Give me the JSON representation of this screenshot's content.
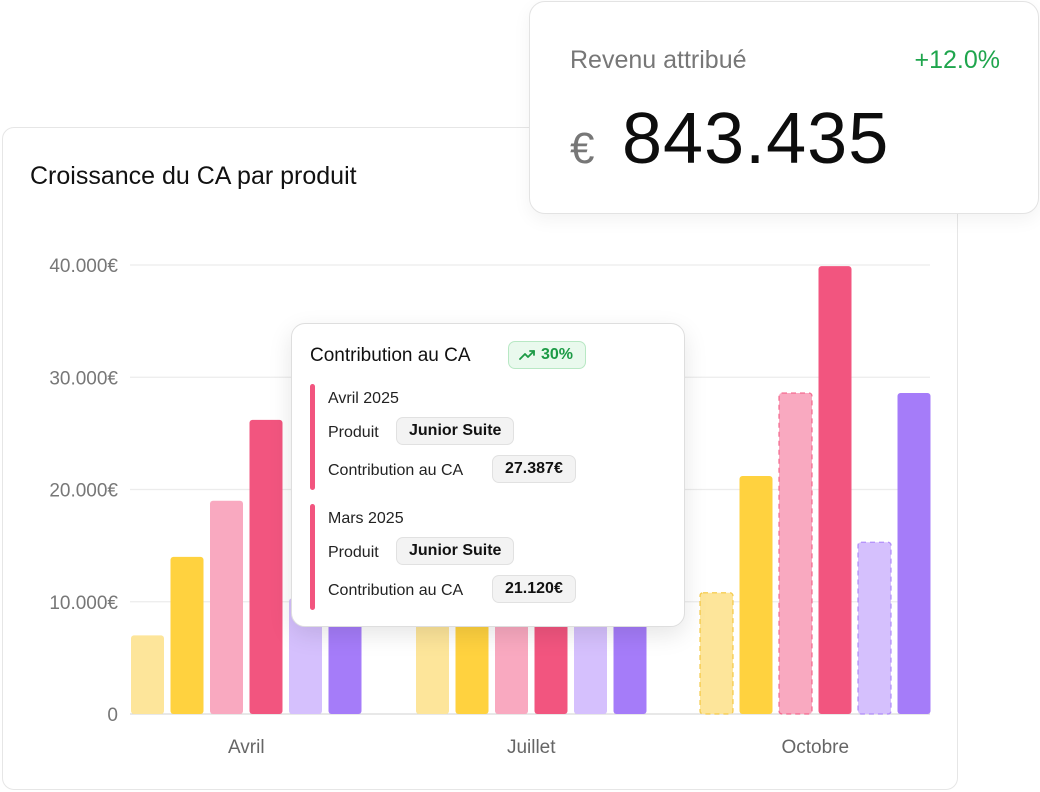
{
  "revenue": {
    "label": "Revenu attribué",
    "delta": "+12.0%",
    "currency": "€",
    "value": "843.435"
  },
  "chart_data": {
    "type": "bar",
    "title": "Croissance du CA par produit",
    "categories": [
      "Avril",
      "Juillet",
      "Octobre"
    ],
    "ylim": [
      0,
      40000
    ],
    "y_ticks": [
      {
        "value": 0,
        "label": "0"
      },
      {
        "value": 10000,
        "label": "10.000€"
      },
      {
        "value": 20000,
        "label": "20.000€"
      },
      {
        "value": 30000,
        "label": "30.000€"
      },
      {
        "value": 40000,
        "label": "40.000€"
      }
    ],
    "grid": true,
    "series_colors": [
      "#fde59a",
      "#ffd23f",
      "#f9a9c0",
      "#f2557f",
      "#d5c0fd",
      "#a57cf9"
    ],
    "groups": [
      {
        "category": "Avril",
        "values": [
          7000,
          14000,
          19000,
          26200,
          10300,
          10300
        ],
        "dashed": [
          false,
          false,
          false,
          false,
          false,
          false
        ]
      },
      {
        "category": "Juillet",
        "values": [
          8000,
          8000,
          8000,
          8000,
          8000,
          8000
        ],
        "dashed": [
          false,
          false,
          false,
          false,
          false,
          false
        ]
      },
      {
        "category": "Octobre",
        "values": [
          10800,
          21200,
          28600,
          39900,
          15300,
          28600
        ],
        "dashed": [
          true,
          false,
          true,
          false,
          true,
          false
        ]
      }
    ]
  },
  "tooltip": {
    "title": "Contribution au CA",
    "badge": "30%",
    "badge_icon": "trending-up-icon",
    "entries": [
      {
        "date": "Avril 2025",
        "product_label": "Produit",
        "product": "Junior Suite",
        "contribution_label": "Contribution au CA",
        "contribution": "27.387€"
      },
      {
        "date": "Mars 2025",
        "product_label": "Produit",
        "product": "Junior Suite",
        "contribution_label": "Contribution au CA",
        "contribution": "21.120€"
      }
    ]
  }
}
